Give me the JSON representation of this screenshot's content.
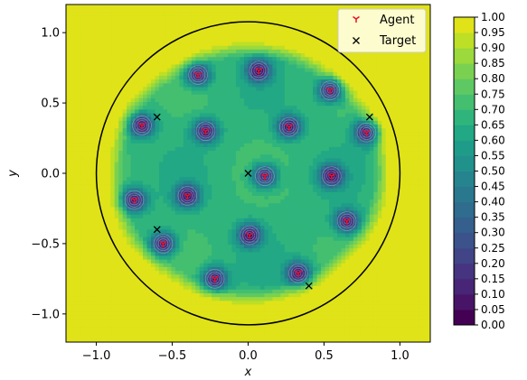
{
  "chart_data": {
    "type": "heatmap",
    "xlabel": "x",
    "ylabel": "y",
    "xlim": [
      -1.2,
      1.2
    ],
    "ylim": [
      -1.2,
      1.2
    ],
    "xticks": [
      "-1.0",
      "-0.5",
      "0.0",
      "0.5",
      "1.0"
    ],
    "yticks": [
      "1.0",
      "0.5",
      "0.0",
      "-0.5",
      "-1.0"
    ],
    "xtick_values": [
      -1.0,
      -0.5,
      0.0,
      0.5,
      1.0
    ],
    "ytick_values": [
      1.0,
      0.5,
      0.0,
      -0.5,
      -1.0
    ],
    "circle": {
      "cx": 0.0,
      "cy": 0.0,
      "r": 1.0
    },
    "colorbar": {
      "range": [
        0.0,
        1.0
      ],
      "labels": [
        "1.00",
        "0.95",
        "0.90",
        "0.85",
        "0.80",
        "0.75",
        "0.70",
        "0.65",
        "0.60",
        "0.55",
        "0.50",
        "0.45",
        "0.40",
        "0.35",
        "0.30",
        "0.25",
        "0.20",
        "0.15",
        "0.10",
        "0.05",
        "0.00"
      ],
      "levels": 20
    },
    "legend": {
      "position": "top-right",
      "items": [
        {
          "label": "Agent",
          "marker": "tri_down",
          "color": "#e8122b"
        },
        {
          "label": "Target",
          "marker": "x",
          "color": "#000000"
        }
      ]
    },
    "agents": [
      [
        -0.33,
        0.7
      ],
      [
        0.07,
        0.73
      ],
      [
        0.54,
        0.59
      ],
      [
        -0.7,
        0.34
      ],
      [
        -0.28,
        0.3
      ],
      [
        0.27,
        0.33
      ],
      [
        0.78,
        0.29
      ],
      [
        0.11,
        -0.02
      ],
      [
        0.55,
        -0.02
      ],
      [
        -0.75,
        -0.19
      ],
      [
        -0.4,
        -0.16
      ],
      [
        0.65,
        -0.34
      ],
      [
        -0.56,
        -0.5
      ],
      [
        0.01,
        -0.44
      ],
      [
        -0.22,
        -0.75
      ],
      [
        0.33,
        -0.71
      ]
    ],
    "targets": [
      [
        -0.6,
        0.4
      ],
      [
        0.8,
        0.4
      ],
      [
        0.0,
        0.0
      ],
      [
        -0.6,
        -0.4
      ],
      [
        0.4,
        -0.8
      ]
    ],
    "colormap": [
      "#440154",
      "#481467",
      "#482576",
      "#463480",
      "#414487",
      "#3b528b",
      "#355f8d",
      "#2f6c8e",
      "#2a788e",
      "#25848e",
      "#21918c",
      "#1e9c89",
      "#22a884",
      "#2fb47c",
      "#44bf70",
      "#5ec962",
      "#7ad151",
      "#9bd93c",
      "#bddf26",
      "#dfe318",
      "#fde725"
    ]
  }
}
